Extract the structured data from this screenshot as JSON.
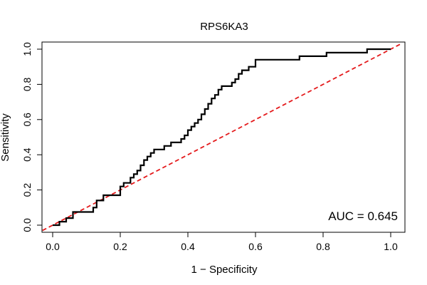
{
  "chart_data": {
    "type": "line",
    "title": "RPS6KA3",
    "xlabel": "1 − Specificity",
    "ylabel": "Sensitivity",
    "xlim": [
      0,
      1
    ],
    "ylim": [
      0,
      1
    ],
    "x_ticks": [
      0.0,
      0.2,
      0.4,
      0.6,
      0.8,
      1.0
    ],
    "y_ticks": [
      0.0,
      0.2,
      0.4,
      0.6,
      0.8,
      1.0
    ],
    "x_tick_labels": [
      "0.0",
      "0.2",
      "0.4",
      "0.6",
      "0.8",
      "1.0"
    ],
    "y_tick_labels": [
      "0.0",
      "0.2",
      "0.4",
      "0.6",
      "0.8",
      "1.0"
    ],
    "grid": false,
    "annotation": "AUC = 0.645",
    "annotation_position": "bottom-right",
    "series": [
      {
        "color": "#000000",
        "style": "step",
        "points": [
          [
            0.0,
            0.0
          ],
          [
            0.02,
            0.0
          ],
          [
            0.02,
            0.02
          ],
          [
            0.04,
            0.02
          ],
          [
            0.04,
            0.04
          ],
          [
            0.06,
            0.04
          ],
          [
            0.06,
            0.075
          ],
          [
            0.12,
            0.075
          ],
          [
            0.12,
            0.1
          ],
          [
            0.13,
            0.1
          ],
          [
            0.13,
            0.14
          ],
          [
            0.15,
            0.14
          ],
          [
            0.15,
            0.17
          ],
          [
            0.2,
            0.17
          ],
          [
            0.2,
            0.22
          ],
          [
            0.21,
            0.22
          ],
          [
            0.21,
            0.24
          ],
          [
            0.23,
            0.24
          ],
          [
            0.23,
            0.27
          ],
          [
            0.24,
            0.27
          ],
          [
            0.24,
            0.29
          ],
          [
            0.25,
            0.29
          ],
          [
            0.25,
            0.31
          ],
          [
            0.26,
            0.31
          ],
          [
            0.26,
            0.34
          ],
          [
            0.27,
            0.34
          ],
          [
            0.27,
            0.37
          ],
          [
            0.28,
            0.37
          ],
          [
            0.28,
            0.39
          ],
          [
            0.29,
            0.39
          ],
          [
            0.29,
            0.41
          ],
          [
            0.3,
            0.41
          ],
          [
            0.3,
            0.43
          ],
          [
            0.33,
            0.43
          ],
          [
            0.33,
            0.45
          ],
          [
            0.35,
            0.45
          ],
          [
            0.35,
            0.47
          ],
          [
            0.38,
            0.47
          ],
          [
            0.38,
            0.49
          ],
          [
            0.39,
            0.49
          ],
          [
            0.39,
            0.51
          ],
          [
            0.4,
            0.51
          ],
          [
            0.4,
            0.54
          ],
          [
            0.41,
            0.54
          ],
          [
            0.41,
            0.56
          ],
          [
            0.42,
            0.56
          ],
          [
            0.42,
            0.58
          ],
          [
            0.43,
            0.58
          ],
          [
            0.43,
            0.6
          ],
          [
            0.44,
            0.6
          ],
          [
            0.44,
            0.63
          ],
          [
            0.45,
            0.63
          ],
          [
            0.45,
            0.66
          ],
          [
            0.46,
            0.66
          ],
          [
            0.46,
            0.69
          ],
          [
            0.47,
            0.69
          ],
          [
            0.47,
            0.72
          ],
          [
            0.48,
            0.72
          ],
          [
            0.48,
            0.74
          ],
          [
            0.49,
            0.74
          ],
          [
            0.49,
            0.77
          ],
          [
            0.5,
            0.77
          ],
          [
            0.5,
            0.79
          ],
          [
            0.53,
            0.79
          ],
          [
            0.53,
            0.81
          ],
          [
            0.54,
            0.81
          ],
          [
            0.54,
            0.83
          ],
          [
            0.55,
            0.83
          ],
          [
            0.55,
            0.86
          ],
          [
            0.56,
            0.86
          ],
          [
            0.56,
            0.88
          ],
          [
            0.58,
            0.88
          ],
          [
            0.58,
            0.9
          ],
          [
            0.6,
            0.9
          ],
          [
            0.6,
            0.94
          ],
          [
            0.73,
            0.94
          ],
          [
            0.73,
            0.96
          ],
          [
            0.81,
            0.96
          ],
          [
            0.81,
            0.98
          ],
          [
            0.93,
            0.98
          ],
          [
            0.93,
            1.0
          ],
          [
            1.0,
            1.0
          ]
        ]
      }
    ],
    "reference_line": {
      "points": [
        [
          -0.03,
          -0.03
        ],
        [
          1.03,
          1.03
        ]
      ],
      "color": "#e41a1c",
      "style": "dashed"
    }
  }
}
